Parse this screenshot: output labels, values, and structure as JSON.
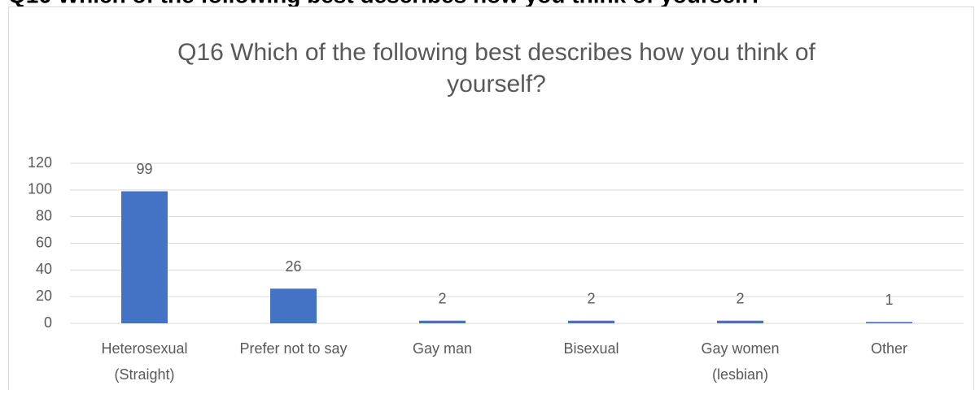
{
  "page_heading": "Q16 Which of the following best describes how you think of yourself?",
  "chart_data": {
    "type": "bar",
    "title": [
      "Q16 Which of the following best describes how you think of",
      "yourself?"
    ],
    "categories": [
      [
        "Heterosexual",
        "(Straight)"
      ],
      [
        "Prefer not to say"
      ],
      [
        "Gay man"
      ],
      [
        "Bisexual"
      ],
      [
        "Gay women",
        "(lesbian)"
      ],
      [
        "Other"
      ]
    ],
    "values": [
      99,
      26,
      2,
      2,
      2,
      1
    ],
    "color": "#4472c4",
    "ylim": [
      0,
      120
    ],
    "yticks": [
      0,
      20,
      40,
      60,
      80,
      100,
      120
    ],
    "grid": true
  }
}
